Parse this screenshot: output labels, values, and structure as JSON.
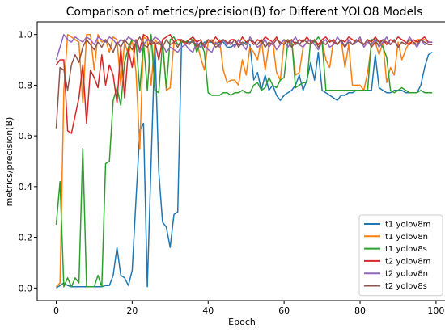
{
  "chart_data": {
    "type": "line",
    "title": "Comparison of metrics/precision(B) for Different YOLO8 Models",
    "xlabel": "Epoch",
    "ylabel": "metrics/precision(B)",
    "xlim": [
      -5,
      103
    ],
    "ylim": [
      -0.05,
      1.05
    ],
    "xticks": [
      0,
      20,
      40,
      60,
      80,
      100
    ],
    "yticks": [
      0.0,
      0.2,
      0.4,
      0.6,
      0.8,
      1.0
    ],
    "grid": false,
    "legend_position": "bottom-right",
    "series": [
      {
        "name": "t1 yolov8m",
        "color": "#1f77b4",
        "x": [
          0,
          1,
          2,
          3,
          4,
          5,
          6,
          7,
          8,
          9,
          10,
          11,
          12,
          13,
          14,
          15,
          16,
          17,
          18,
          19,
          20,
          21,
          22,
          23,
          24,
          25,
          26,
          27,
          28,
          29,
          30,
          31,
          32,
          33,
          34,
          35,
          36,
          37,
          38,
          39,
          40,
          41,
          42,
          43,
          44,
          45,
          46,
          47,
          48,
          49,
          50,
          51,
          52,
          53,
          54,
          55,
          56,
          57,
          58,
          59,
          60,
          61,
          62,
          63,
          64,
          65,
          66,
          67,
          68,
          69,
          70,
          71,
          72,
          73,
          74,
          75,
          76,
          77,
          78,
          79,
          80,
          81,
          82,
          83,
          84,
          85,
          86,
          87,
          88,
          89,
          90,
          91,
          92,
          93,
          94,
          95,
          96,
          97,
          98,
          99
        ],
        "values": [
          0.0,
          0.01,
          0.02,
          0.01,
          0.005,
          0.005,
          0.005,
          0.005,
          0.005,
          0.005,
          0.005,
          0.005,
          0.005,
          0.01,
          0.01,
          0.05,
          0.16,
          0.05,
          0.04,
          0.01,
          0.07,
          0.35,
          0.62,
          0.65,
          0.005,
          0.5,
          0.97,
          0.46,
          0.26,
          0.24,
          0.16,
          0.29,
          0.3,
          0.97,
          0.97,
          0.97,
          0.97,
          0.96,
          0.95,
          0.97,
          0.97,
          0.97,
          0.96,
          0.97,
          0.97,
          0.95,
          0.95,
          0.96,
          0.96,
          0.96,
          0.97,
          0.96,
          0.82,
          0.85,
          0.78,
          0.84,
          0.78,
          0.8,
          0.76,
          0.74,
          0.76,
          0.77,
          0.78,
          0.8,
          0.84,
          0.78,
          0.82,
          0.89,
          0.82,
          0.93,
          0.78,
          0.77,
          0.76,
          0.75,
          0.74,
          0.76,
          0.76,
          0.77,
          0.77,
          0.78,
          0.78,
          0.78,
          0.78,
          0.78,
          0.92,
          0.79,
          0.78,
          0.77,
          0.77,
          0.78,
          0.78,
          0.78,
          0.77,
          0.77,
          0.77,
          0.77,
          0.8,
          0.87,
          0.92,
          0.93
        ]
      },
      {
        "name": "t1 yolov8n",
        "color": "#ff7f0e",
        "x": [
          0,
          1,
          2,
          3,
          4,
          5,
          6,
          7,
          8,
          9,
          10,
          11,
          12,
          13,
          14,
          15,
          16,
          17,
          18,
          19,
          20,
          21,
          22,
          23,
          24,
          25,
          26,
          27,
          28,
          29,
          30,
          31,
          32,
          33,
          34,
          35,
          36,
          37,
          38,
          39,
          40,
          41,
          42,
          43,
          44,
          45,
          46,
          47,
          48,
          49,
          50,
          51,
          52,
          53,
          54,
          55,
          56,
          57,
          58,
          59,
          60,
          61,
          62,
          63,
          64,
          65,
          66,
          67,
          68,
          69,
          70,
          71,
          72,
          73,
          74,
          75,
          76,
          77,
          78,
          79,
          80,
          81,
          82,
          83,
          84,
          85,
          86,
          87,
          88,
          89,
          90,
          91,
          92,
          93,
          94,
          95,
          96,
          97,
          98,
          99
        ],
        "values": [
          0.005,
          0.02,
          0.78,
          1.0,
          0.99,
          0.98,
          0.97,
          0.73,
          1.0,
          1.0,
          0.86,
          1.0,
          0.97,
          0.98,
          0.93,
          0.99,
          0.98,
          0.8,
          0.97,
          0.92,
          0.98,
          0.85,
          0.55,
          0.99,
          0.98,
          0.8,
          0.98,
          0.96,
          0.97,
          0.78,
          0.79,
          0.97,
          0.98,
          0.97,
          0.97,
          0.96,
          0.98,
          0.97,
          0.91,
          0.86,
          0.97,
          0.98,
          0.96,
          0.98,
          0.86,
          0.81,
          0.82,
          0.82,
          0.8,
          0.9,
          0.84,
          0.95,
          0.93,
          0.9,
          0.98,
          0.86,
          0.96,
          0.97,
          0.85,
          0.82,
          0.97,
          0.98,
          0.97,
          0.84,
          0.85,
          0.95,
          0.97,
          0.98,
          0.97,
          0.96,
          0.97,
          0.9,
          0.87,
          0.98,
          0.96,
          0.98,
          0.87,
          0.96,
          0.8,
          0.8,
          0.8,
          0.78,
          0.85,
          0.96,
          0.97,
          0.92,
          0.97,
          0.81,
          0.87,
          0.84,
          0.97,
          0.9,
          0.94,
          0.97,
          0.96,
          0.98,
          0.98,
          0.98,
          0.97,
          0.97
        ]
      },
      {
        "name": "t1 yolov8s",
        "color": "#2ca02c",
        "x": [
          0,
          1,
          2,
          3,
          4,
          5,
          6,
          7,
          8,
          9,
          10,
          11,
          12,
          13,
          14,
          15,
          16,
          17,
          18,
          19,
          20,
          21,
          22,
          23,
          24,
          25,
          26,
          27,
          28,
          29,
          30,
          31,
          32,
          33,
          34,
          35,
          36,
          37,
          38,
          39,
          40,
          41,
          42,
          43,
          44,
          45,
          46,
          47,
          48,
          49,
          50,
          51,
          52,
          53,
          54,
          55,
          56,
          57,
          58,
          59,
          60,
          61,
          62,
          63,
          64,
          65,
          66,
          67,
          68,
          69,
          70,
          71,
          72,
          73,
          74,
          75,
          76,
          77,
          78,
          79,
          80,
          81,
          82,
          83,
          84,
          85,
          86,
          87,
          88,
          89,
          90,
          91,
          92,
          93,
          94,
          95,
          96,
          97,
          98,
          99
        ],
        "values": [
          0.25,
          0.42,
          0.005,
          0.04,
          0.005,
          0.04,
          0.02,
          0.55,
          0.005,
          0.005,
          0.005,
          0.05,
          0.005,
          0.49,
          0.5,
          0.74,
          0.79,
          0.72,
          0.89,
          0.95,
          0.98,
          0.97,
          0.78,
          0.97,
          0.78,
          1.0,
          0.78,
          0.77,
          0.97,
          0.79,
          0.98,
          0.99,
          0.96,
          0.97,
          0.97,
          0.98,
          0.98,
          0.93,
          0.97,
          0.93,
          0.77,
          0.76,
          0.76,
          0.76,
          0.77,
          0.77,
          0.76,
          0.77,
          0.77,
          0.78,
          0.77,
          0.77,
          0.8,
          0.81,
          0.78,
          0.79,
          0.83,
          0.8,
          0.79,
          0.82,
          0.83,
          0.97,
          0.98,
          0.79,
          0.8,
          0.81,
          0.81,
          0.98,
          0.97,
          0.99,
          0.97,
          0.78,
          0.78,
          0.78,
          0.78,
          0.78,
          0.78,
          0.78,
          0.78,
          0.78,
          0.78,
          0.78,
          0.78,
          0.98,
          0.98,
          0.97,
          0.95,
          0.91,
          0.78,
          0.77,
          0.78,
          0.79,
          0.78,
          0.77,
          0.77,
          0.77,
          0.78,
          0.77,
          0.77,
          0.77
        ]
      },
      {
        "name": "t2 yolov8m",
        "color": "#d62728",
        "x": [
          0,
          1,
          2,
          3,
          4,
          5,
          6,
          7,
          8,
          9,
          10,
          11,
          12,
          13,
          14,
          15,
          16,
          17,
          18,
          19,
          20,
          21,
          22,
          23,
          24,
          25,
          26,
          27,
          28,
          29,
          30,
          31,
          32,
          33,
          34,
          35,
          36,
          37,
          38,
          39,
          40,
          41,
          42,
          43,
          44,
          45,
          46,
          47,
          48,
          49,
          50,
          51,
          52,
          53,
          54,
          55,
          56,
          57,
          58,
          59,
          60,
          61,
          62,
          63,
          64,
          65,
          66,
          67,
          68,
          69,
          70,
          71,
          72,
          73,
          74,
          75,
          76,
          77,
          78,
          79,
          80,
          81,
          82,
          83,
          84,
          85,
          86,
          87,
          88,
          89,
          90,
          91,
          92,
          93,
          94,
          95,
          96,
          97,
          98,
          99
        ],
        "values": [
          0.88,
          0.9,
          0.9,
          0.62,
          0.61,
          0.68,
          0.75,
          0.88,
          0.65,
          0.86,
          0.83,
          0.79,
          0.92,
          0.8,
          0.88,
          0.84,
          0.73,
          0.95,
          0.75,
          0.94,
          0.87,
          0.98,
          0.94,
          1.0,
          0.99,
          0.96,
          0.97,
          0.9,
          0.98,
          0.99,
          1.0,
          0.97,
          0.98,
          0.98,
          0.96,
          0.98,
          0.99,
          0.97,
          0.98,
          0.95,
          0.98,
          0.97,
          0.99,
          0.97,
          0.98,
          0.96,
          0.98,
          0.98,
          0.96,
          0.99,
          0.97,
          0.98,
          0.96,
          0.98,
          0.97,
          0.99,
          0.98,
          0.97,
          0.99,
          0.96,
          0.98,
          0.97,
          0.98,
          0.96,
          0.98,
          0.97,
          0.99,
          0.97,
          0.98,
          0.96,
          0.98,
          0.99,
          0.97,
          0.98,
          0.96,
          0.98,
          0.97,
          0.99,
          0.98,
          0.97,
          0.98,
          0.96,
          0.98,
          0.97,
          0.99,
          0.97,
          0.98,
          0.96,
          0.98,
          0.97,
          0.99,
          0.98,
          0.97,
          0.96,
          0.98,
          0.97,
          0.98,
          0.99,
          0.97,
          0.97
        ]
      },
      {
        "name": "t2 yolov8n",
        "color": "#9467bd",
        "x": [
          0,
          1,
          2,
          3,
          4,
          5,
          6,
          7,
          8,
          9,
          10,
          11,
          12,
          13,
          14,
          15,
          16,
          17,
          18,
          19,
          20,
          21,
          22,
          23,
          24,
          25,
          26,
          27,
          28,
          29,
          30,
          31,
          32,
          33,
          34,
          35,
          36,
          37,
          38,
          39,
          40,
          41,
          42,
          43,
          44,
          45,
          46,
          47,
          48,
          49,
          50,
          51,
          52,
          53,
          54,
          55,
          56,
          57,
          58,
          59,
          60,
          61,
          62,
          63,
          64,
          65,
          66,
          67,
          68,
          69,
          70,
          71,
          72,
          73,
          74,
          75,
          76,
          77,
          78,
          79,
          80,
          81,
          82,
          83,
          84,
          85,
          86,
          87,
          88,
          89,
          90,
          91,
          92,
          93,
          94,
          95,
          96,
          97,
          98,
          99
        ],
        "values": [
          0.9,
          0.95,
          1.0,
          0.98,
          0.97,
          0.99,
          0.98,
          0.97,
          0.99,
          0.98,
          0.96,
          0.99,
          0.98,
          0.97,
          0.99,
          0.98,
          0.96,
          0.98,
          0.97,
          0.99,
          0.98,
          0.97,
          0.93,
          0.96,
          0.98,
          0.97,
          0.99,
          0.98,
          0.96,
          0.93,
          0.95,
          0.94,
          0.93,
          0.95,
          0.96,
          0.94,
          0.93,
          0.97,
          0.95,
          0.96,
          0.94,
          0.93,
          0.97,
          0.95,
          0.98,
          0.96,
          0.97,
          0.95,
          0.98,
          0.96,
          0.94,
          0.99,
          0.97,
          0.95,
          0.96,
          0.98,
          0.95,
          0.97,
          0.94,
          0.96,
          0.98,
          0.95,
          0.97,
          0.99,
          0.96,
          0.95,
          0.97,
          0.98,
          0.96,
          0.94,
          0.97,
          0.98,
          0.95,
          0.96,
          0.99,
          0.97,
          0.95,
          0.98,
          0.96,
          0.97,
          0.99,
          0.95,
          0.97,
          0.96,
          0.98,
          0.95,
          0.97,
          0.99,
          0.96,
          0.98,
          0.95,
          0.97,
          0.96,
          0.99,
          0.97,
          0.95,
          0.98,
          0.96,
          0.97,
          0.97
        ]
      },
      {
        "name": "t2 yolov8s",
        "color": "#8c564b",
        "x": [
          0,
          1,
          2,
          3,
          4,
          5,
          6,
          7,
          8,
          9,
          10,
          11,
          12,
          13,
          14,
          15,
          16,
          17,
          18,
          19,
          20,
          21,
          22,
          23,
          24,
          25,
          26,
          27,
          28,
          29,
          30,
          31,
          32,
          33,
          34,
          35,
          36,
          37,
          38,
          39,
          40,
          41,
          42,
          43,
          44,
          45,
          46,
          47,
          48,
          49,
          50,
          51,
          52,
          53,
          54,
          55,
          56,
          57,
          58,
          59,
          60,
          61,
          62,
          63,
          64,
          65,
          66,
          67,
          68,
          69,
          70,
          71,
          72,
          73,
          74,
          75,
          76,
          77,
          78,
          79,
          80,
          81,
          82,
          83,
          84,
          85,
          86,
          87,
          88,
          89,
          90,
          91,
          92,
          93,
          94,
          95,
          96,
          97,
          98,
          99
        ],
        "values": [
          0.63,
          0.87,
          0.86,
          0.78,
          0.88,
          0.92,
          0.89,
          0.95,
          0.98,
          0.96,
          0.94,
          0.97,
          0.95,
          0.98,
          0.96,
          0.93,
          0.97,
          0.95,
          0.98,
          0.96,
          0.94,
          0.97,
          0.99,
          0.96,
          0.95,
          0.98,
          0.96,
          0.97,
          0.95,
          0.98,
          0.96,
          0.97,
          0.95,
          0.98,
          0.97,
          0.96,
          0.98,
          0.95,
          0.97,
          0.96,
          0.98,
          0.97,
          0.95,
          0.96,
          0.98,
          0.97,
          0.96,
          0.98,
          0.95,
          0.97,
          0.96,
          0.98,
          0.97,
          0.96,
          0.98,
          0.95,
          0.97,
          0.96,
          0.98,
          0.97,
          0.96,
          0.98,
          0.95,
          0.97,
          0.96,
          0.98,
          0.97,
          0.96,
          0.98,
          0.95,
          0.97,
          0.96,
          0.98,
          0.97,
          0.96,
          0.98,
          0.95,
          0.97,
          0.96,
          0.98,
          0.97,
          0.96,
          0.98,
          0.95,
          0.97,
          0.96,
          0.98,
          0.97,
          0.96,
          0.98,
          0.95,
          0.97,
          0.96,
          0.98,
          0.97,
          0.96,
          0.98,
          0.97,
          0.96,
          0.96
        ]
      }
    ]
  }
}
